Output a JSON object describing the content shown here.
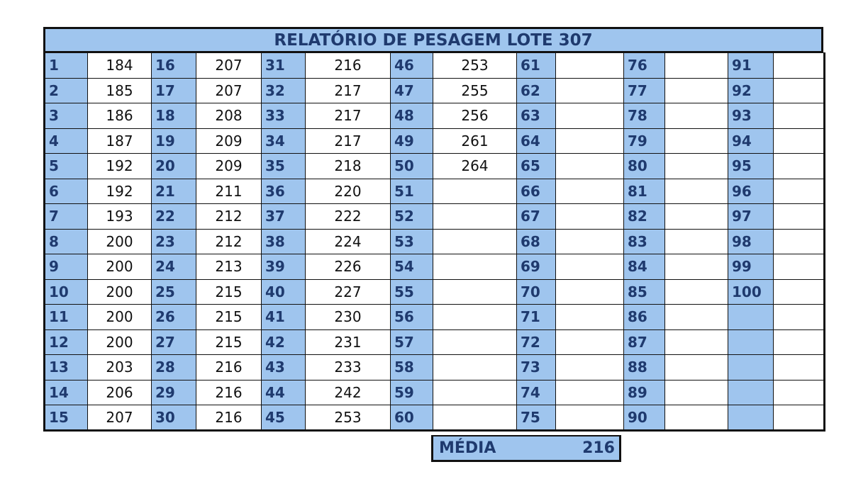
{
  "title": "RELATÓRIO DE PESAGEM LOTE 307",
  "summary": {
    "label": "MÉDIA",
    "value": "216"
  },
  "colors": {
    "header_fill": "#9fc5ee",
    "id_text": "#1f3a6e",
    "border": "#111111"
  },
  "columns": [
    {
      "ids": [
        "1",
        "2",
        "3",
        "4",
        "5",
        "6",
        "7",
        "8",
        "9",
        "10",
        "11",
        "12",
        "13",
        "14",
        "15"
      ],
      "weights": [
        "184",
        "185",
        "186",
        "187",
        "192",
        "192",
        "193",
        "200",
        "200",
        "200",
        "200",
        "200",
        "203",
        "206",
        "207"
      ]
    },
    {
      "ids": [
        "16",
        "17",
        "18",
        "19",
        "20",
        "21",
        "22",
        "23",
        "24",
        "25",
        "26",
        "27",
        "28",
        "29",
        "30"
      ],
      "weights": [
        "207",
        "207",
        "208",
        "209",
        "209",
        "211",
        "212",
        "212",
        "213",
        "215",
        "215",
        "215",
        "216",
        "216",
        "216"
      ]
    },
    {
      "ids": [
        "31",
        "32",
        "33",
        "34",
        "35",
        "36",
        "37",
        "38",
        "39",
        "40",
        "41",
        "42",
        "43",
        "44",
        "45"
      ],
      "weights": [
        "216",
        "217",
        "217",
        "217",
        "218",
        "220",
        "222",
        "224",
        "226",
        "227",
        "230",
        "231",
        "233",
        "242",
        "253"
      ]
    },
    {
      "ids": [
        "46",
        "47",
        "48",
        "49",
        "50",
        "51",
        "52",
        "53",
        "54",
        "55",
        "56",
        "57",
        "58",
        "59",
        "60"
      ],
      "weights": [
        "253",
        "255",
        "256",
        "261",
        "264",
        "",
        "",
        "",
        "",
        "",
        "",
        "",
        "",
        "",
        ""
      ]
    },
    {
      "ids": [
        "61",
        "62",
        "63",
        "64",
        "65",
        "66",
        "67",
        "68",
        "69",
        "70",
        "71",
        "72",
        "73",
        "74",
        "75"
      ],
      "weights": [
        "",
        "",
        "",
        "",
        "",
        "",
        "",
        "",
        "",
        "",
        "",
        "",
        "",
        "",
        ""
      ]
    },
    {
      "ids": [
        "76",
        "77",
        "78",
        "79",
        "80",
        "81",
        "82",
        "83",
        "84",
        "85",
        "86",
        "87",
        "88",
        "89",
        "90"
      ],
      "weights": [
        "",
        "",
        "",
        "",
        "",
        "",
        "",
        "",
        "",
        "",
        "",
        "",
        "",
        "",
        ""
      ]
    },
    {
      "ids": [
        "91",
        "92",
        "93",
        "94",
        "95",
        "96",
        "97",
        "98",
        "99",
        "100",
        "",
        "",
        "",
        "",
        ""
      ],
      "weights": [
        "",
        "",
        "",
        "",
        "",
        "",
        "",
        "",
        "",
        "",
        "",
        "",
        "",
        "",
        ""
      ]
    }
  ]
}
